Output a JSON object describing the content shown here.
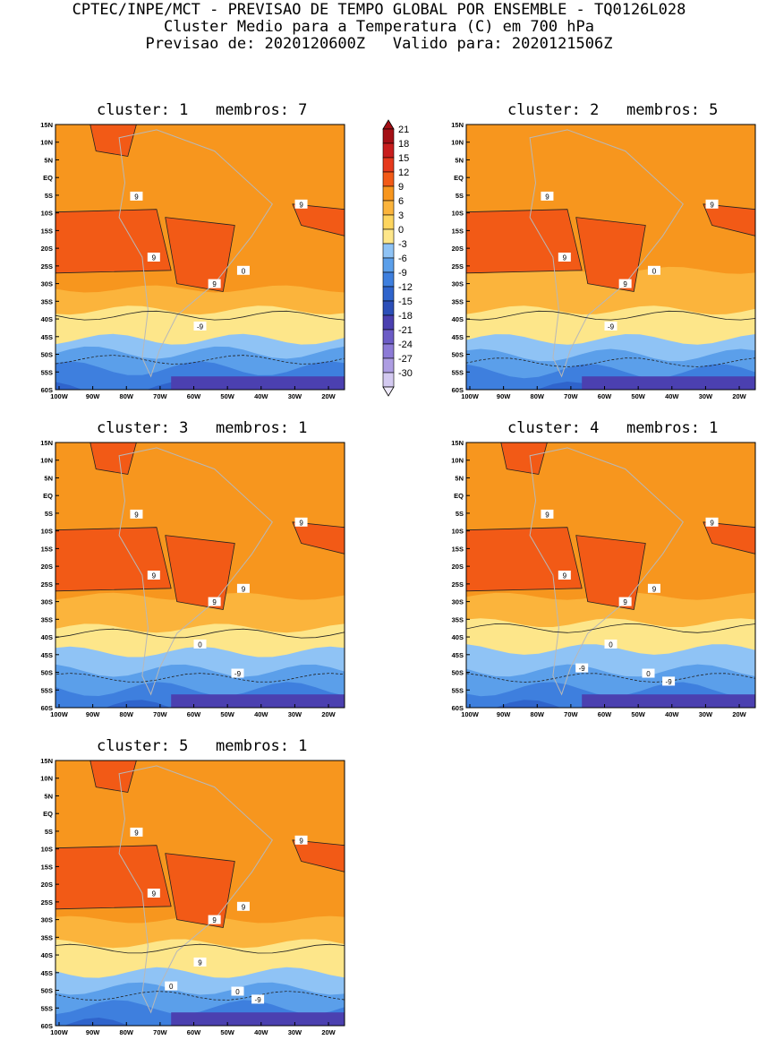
{
  "header": {
    "line1": "CPTEC/INPE/MCT - PREVISAO DE TEMPO GLOBAL POR ENSEMBLE - TQ0126L028",
    "line2": "Cluster Medio para a Temperatura (C) em 700 hPa",
    "line3": "Previsao de: 2020120600Z   Valido para: 2020121506Z"
  },
  "clusters": [
    {
      "title": "cluster: 1   membros: 7",
      "contour_labels": [
        "9",
        "9",
        "9",
        "9",
        "0",
        "-9"
      ]
    },
    {
      "title": "cluster: 2   membros: 5",
      "contour_labels": [
        "9",
        "9",
        "9",
        "9",
        "0",
        "-9"
      ]
    },
    {
      "title": "cluster: 3   membros: 1",
      "contour_labels": [
        "9",
        "9",
        "9",
        "9",
        "9",
        "0",
        "-9"
      ]
    },
    {
      "title": "cluster: 4   membros: 1",
      "contour_labels": [
        "9",
        "9",
        "9",
        "9",
        "9",
        "0",
        "0",
        "-9",
        "-9"
      ]
    },
    {
      "title": "cluster: 5   membros: 1",
      "contour_labels": [
        "9",
        "9",
        "9",
        "9",
        "9",
        "9",
        "0",
        "0",
        "-9"
      ]
    }
  ],
  "lat_labels": [
    "15N",
    "10N",
    "5N",
    "EQ",
    "5S",
    "10S",
    "15S",
    "20S",
    "25S",
    "30S",
    "35S",
    "40S",
    "45S",
    "50S",
    "55S",
    "60S"
  ],
  "lon_labels": [
    "100W",
    "90W",
    "80W",
    "70W",
    "60W",
    "50W",
    "40W",
    "30W",
    "20W"
  ],
  "colorbar": {
    "labels": [
      "21",
      "18",
      "15",
      "12",
      "9",
      "6",
      "3",
      "0",
      "-3",
      "-6",
      "-9",
      "-12",
      "-15",
      "-18",
      "-21",
      "-24",
      "-27",
      "-30"
    ],
    "colors": [
      "#a40f15",
      "#c81d1d",
      "#e6391c",
      "#f25a16",
      "#f7961e",
      "#fbb43c",
      "#fdd55f",
      "#fde68a",
      "#8fc3f5",
      "#5b9fea",
      "#3e7fde",
      "#2f64cc",
      "#2c4fb8",
      "#4b40b0",
      "#6c5cc6",
      "#8c7ad6",
      "#ad9de2",
      "#d3c9f0"
    ]
  }
}
